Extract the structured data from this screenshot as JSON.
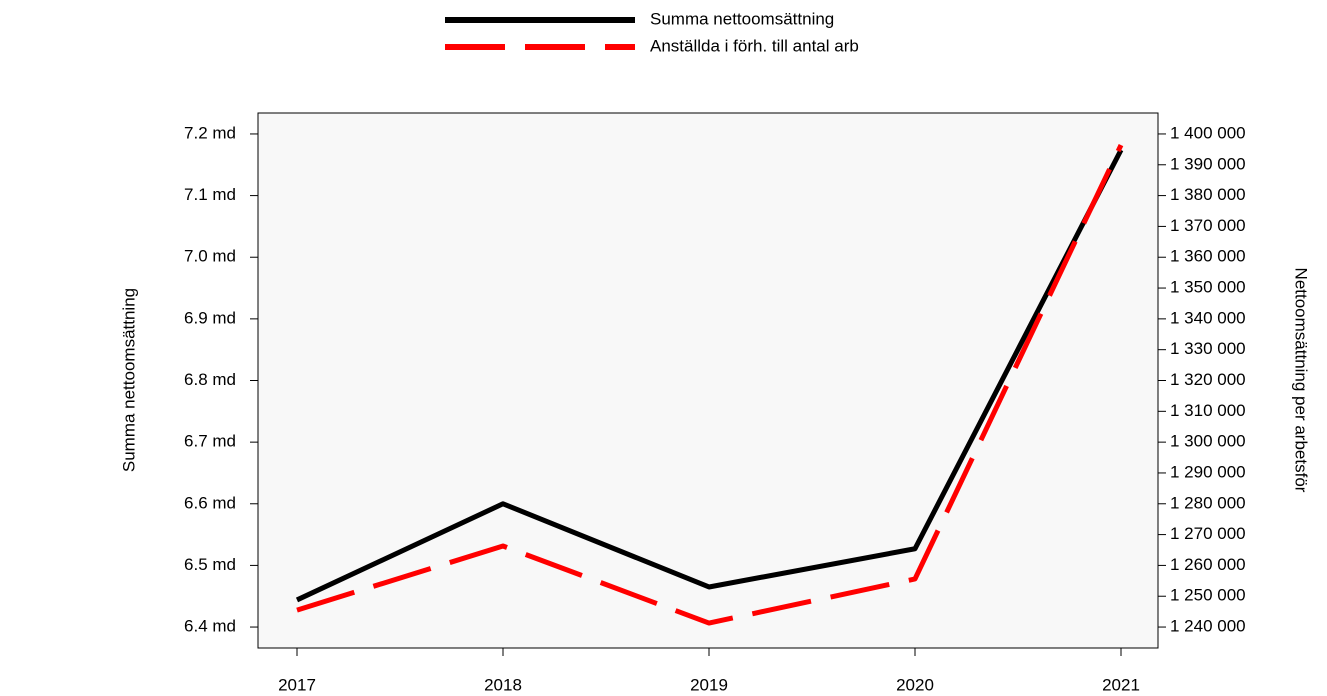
{
  "chart_data": {
    "type": "line",
    "categories": [
      "2017",
      "2018",
      "2019",
      "2020",
      "2021"
    ],
    "series": [
      {
        "name": "Summa nettoomsättning",
        "color": "#000000",
        "values": [
          6.444,
          6.6,
          6.465,
          6.527,
          7.174
        ]
      },
      {
        "name": "Anställda i förh. till antal arb",
        "color": "#ff0000",
        "axis": "y2",
        "dashed": true,
        "values": [
          1245500,
          1266300,
          1241300,
          1255600,
          1396400
        ]
      }
    ],
    "ylabel": "Summa nettoomsättning",
    "y2label": "Nettoomsättning per arbetsför",
    "ylim": [
      6.366,
      7.234
    ],
    "yticks": [
      {
        "value": 6.4,
        "label": "6.4 md"
      },
      {
        "value": 6.5,
        "label": "6.5 md"
      },
      {
        "value": 6.6,
        "label": "6.6 md"
      },
      {
        "value": 6.7,
        "label": "6.7 md"
      },
      {
        "value": 6.8,
        "label": "6.8 md"
      },
      {
        "value": 6.9,
        "label": "6.9 md"
      },
      {
        "value": 7.0,
        "label": "7.0 md"
      },
      {
        "value": 7.1,
        "label": "7.1 md"
      },
      {
        "value": 7.2,
        "label": "7.2 md"
      }
    ],
    "y2lim": [
      1233200,
      1406800
    ],
    "y2ticks": [
      {
        "value": 1240000,
        "label": "1 240 000"
      },
      {
        "value": 1250000,
        "label": "1 250 000"
      },
      {
        "value": 1260000,
        "label": "1 260 000"
      },
      {
        "value": 1270000,
        "label": "1 270 000"
      },
      {
        "value": 1280000,
        "label": "1 280 000"
      },
      {
        "value": 1290000,
        "label": "1 290 000"
      },
      {
        "value": 1300000,
        "label": "1 300 000"
      },
      {
        "value": 1310000,
        "label": "1 310 000"
      },
      {
        "value": 1320000,
        "label": "1 320 000"
      },
      {
        "value": 1330000,
        "label": "1 330 000"
      },
      {
        "value": 1340000,
        "label": "1 340 000"
      },
      {
        "value": 1350000,
        "label": "1 350 000"
      },
      {
        "value": 1360000,
        "label": "1 360 000"
      },
      {
        "value": 1370000,
        "label": "1 370 000"
      },
      {
        "value": 1380000,
        "label": "1 380 000"
      },
      {
        "value": 1390000,
        "label": "1 390 000"
      },
      {
        "value": 1400000,
        "label": "1 400 000"
      }
    ],
    "plot_background": "#f8f8f8",
    "legend": "top"
  }
}
